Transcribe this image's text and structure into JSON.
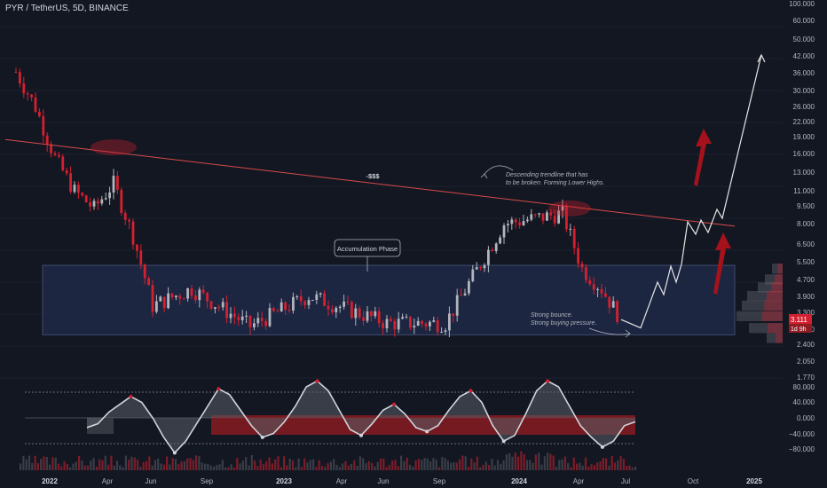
{
  "header": {
    "title": "PYR / TetherUS, 5D, BINANCE"
  },
  "colors": {
    "bg": "#131722",
    "up": "#b2b5be",
    "down": "#d4202f",
    "trendline": "#d84a4a",
    "zone_fill": "#1f2a4a",
    "zone_stroke": "#3f4a6e",
    "arrow_white": "#e6e6e6",
    "arrow_red": "#a5121c",
    "osc_fill": "#5a5d66",
    "osc_red": "#8e1c22"
  },
  "annotations": {
    "accumulation": "Accumulation Phase",
    "trendline_label": "-$$$",
    "trend_note_1": "Descending trendline that has",
    "trend_note_2": "to be broken. Forming Lower Highs.",
    "bounce_1": "Strong bounce.",
    "bounce_2": "Strong buying pressure."
  },
  "price_axis": {
    "labels": [
      "100.000",
      "60.000",
      "50.000",
      "42.000",
      "36.000",
      "30.000",
      "26.000",
      "22.000",
      "19.000",
      "16.000",
      "13.000",
      "11.000",
      "9.500",
      "8.000",
      "6.500",
      "5.500",
      "4.700",
      "3.900",
      "3.300",
      "2.800",
      "2.400",
      "2.050",
      "1.770"
    ],
    "last_price": "3.111",
    "countdown": "1d 9h"
  },
  "osc_axis": {
    "labels": [
      "80.000",
      "40.000",
      "0.000",
      "−40.000",
      "−80.000"
    ]
  },
  "time_axis": {
    "labels": [
      "2022",
      "Apr",
      "Jun",
      "Sep",
      "2023",
      "Apr",
      "Jun",
      "Sep",
      "2024",
      "Apr",
      "Jul",
      "Oct",
      "2025"
    ]
  },
  "chart_data": [
    {
      "type": "candlestick",
      "symbol": "PYR / TetherUS",
      "interval": "5D",
      "exchange": "BINANCE",
      "yscale": "log",
      "ylim": [
        1.77,
        100
      ],
      "x_start": "2021-11",
      "x_end": "2025-03",
      "key_closes": [
        {
          "date": "2021-11",
          "price": 42.0
        },
        {
          "date": "2021-12",
          "price": 29.0
        },
        {
          "date": "2022-01",
          "price": 17.0
        },
        {
          "date": "2022-02",
          "price": 12.0
        },
        {
          "date": "2022-03",
          "price": 10.0
        },
        {
          "date": "2022-04",
          "price": 13.0
        },
        {
          "date": "2022-05",
          "price": 7.5
        },
        {
          "date": "2022-06",
          "price": 3.6
        },
        {
          "date": "2022-08",
          "price": 4.3
        },
        {
          "date": "2022-11",
          "price": 2.9
        },
        {
          "date": "2023-02",
          "price": 4.0
        },
        {
          "date": "2023-06",
          "price": 3.0
        },
        {
          "date": "2023-09",
          "price": 3.0
        },
        {
          "date": "2023-11",
          "price": 6.0
        },
        {
          "date": "2023-12",
          "price": 8.5
        },
        {
          "date": "2024-03",
          "price": 9.5
        },
        {
          "date": "2024-04",
          "price": 5.3
        },
        {
          "date": "2024-05",
          "price": 4.3
        },
        {
          "date": "2024-06",
          "price": 3.11
        }
      ],
      "projection": [
        {
          "date": "2024-07",
          "price": 2.9
        },
        {
          "date": "2024-08",
          "price": 4.0
        },
        {
          "date": "2024-09",
          "price": 4.6
        },
        {
          "date": "2024-10",
          "price": 7.5
        },
        {
          "date": "2024-11",
          "price": 9.0
        },
        {
          "date": "2025-01",
          "price": 40.0
        }
      ],
      "accumulation_zone": {
        "from": "2022-01",
        "to": "2024-12",
        "low": 2.65,
        "high": 5.5
      },
      "trendline": [
        {
          "date": "2021-11",
          "price": 19.5
        },
        {
          "date": "2024-12",
          "price": 8.3
        }
      ]
    },
    {
      "type": "area",
      "name": "Oscillator",
      "ylim": [
        -90,
        90
      ],
      "values": [
        -25,
        -15,
        15,
        35,
        55,
        40,
        0,
        -50,
        -90,
        -60,
        -15,
        30,
        75,
        60,
        20,
        -20,
        -50,
        -40,
        -10,
        30,
        80,
        95,
        70,
        20,
        -30,
        -45,
        -15,
        20,
        35,
        10,
        -25,
        -35,
        -20,
        20,
        55,
        70,
        40,
        -20,
        -60,
        -45,
        10,
        70,
        95,
        80,
        30,
        -20,
        -50,
        -75,
        -60,
        -20,
        -10
      ]
    }
  ]
}
